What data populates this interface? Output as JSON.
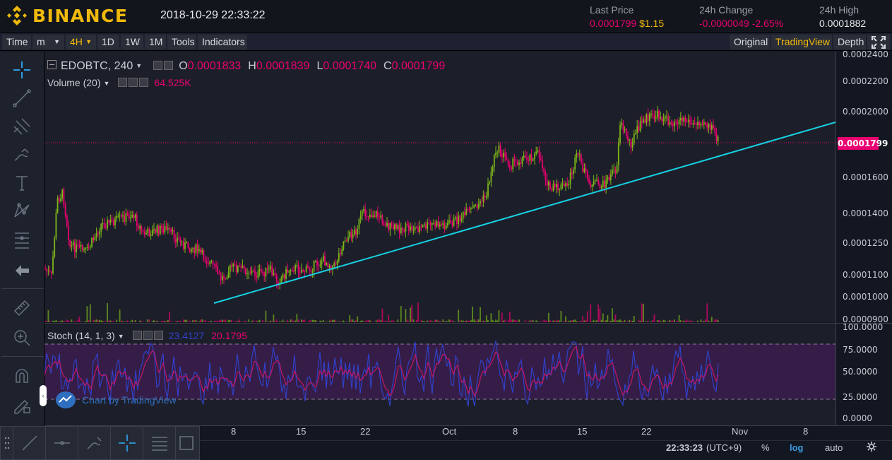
{
  "header": {
    "brand": "BINANCE",
    "datetime": "2018-10-29 22:33:22",
    "stats": [
      {
        "label": "Last Price",
        "value": "0.0001799",
        "value2": "$1.15"
      },
      {
        "label": "24h Change",
        "value": "-0.0000049",
        "value2": "-2.65%"
      },
      {
        "label": "24h High",
        "value": "0.0001882"
      }
    ]
  },
  "toolbar": {
    "time": "Time",
    "m": "m",
    "interval": "4H",
    "d1": "1D",
    "w1": "1W",
    "mo1": "1M",
    "tools": "Tools",
    "indicators": "Indicators",
    "original": "Original",
    "tradingview": "TradingView",
    "depth": "Depth"
  },
  "legend": {
    "symbol": "EDOBTC, 240",
    "o_label": "O",
    "o": "0.0001833",
    "h_label": "H",
    "h": "0.0001839",
    "l_label": "L",
    "l": "0.0001740",
    "c_label": "C",
    "c": "0.0001799",
    "volume": "Volume (20)",
    "volume_value": "64.525K",
    "stoch": "Stoch (14, 1, 3)",
    "stoch_k": "23.4127",
    "stoch_d": "20.1795"
  },
  "price_axis": [
    "0.0002400",
    "0.0002200",
    "0.0002000",
    "0.0001799",
    "0.0001600",
    "0.0001400",
    "0.0001250",
    "0.0001100",
    "0.0001000",
    "0.0000900"
  ],
  "stoch_axis": [
    "100.0000",
    "75.0000",
    "50.0000",
    "25.0000",
    "0.0000"
  ],
  "last_price_tag": "0.0001799",
  "date_axis": [
    "8",
    "15",
    "22",
    "Oct",
    "8",
    "15",
    "22",
    "Nov",
    "8"
  ],
  "watermark": "Chart by TradingView",
  "bottombar": {
    "clock": "22:33:23",
    "tz": "(UTC+9)",
    "pct": "%",
    "log": "log",
    "auto": "auto"
  },
  "colors": {
    "up": "#7cb518",
    "down": "#ea0070",
    "trendline": "#17d0e3",
    "stoch_k": "#3040c8",
    "stoch_d": "#c01868",
    "stoch_band": "#3b1d4c",
    "accent": "#f0b90b"
  }
}
